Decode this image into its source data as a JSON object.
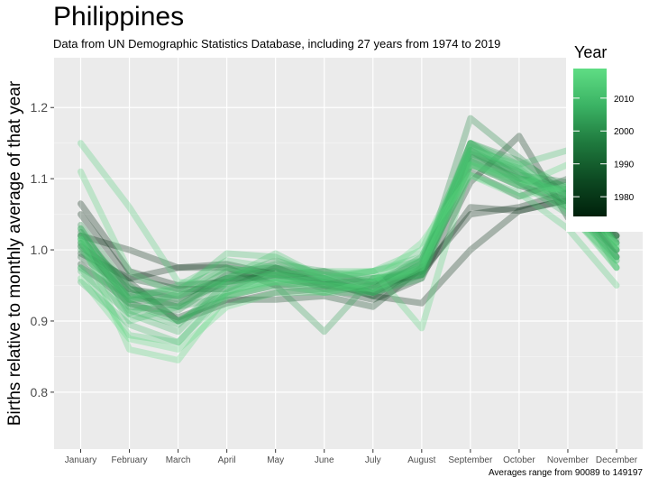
{
  "chart_data": {
    "type": "line",
    "title": "Philippines",
    "subtitle": "Data from UN Demographic Statistics Database, including 27 years from 1974 to 2019",
    "caption": "Averages range from 90089 to 149197",
    "ylabel": "Births relative to monthly average of that year",
    "xlabel": "",
    "categories": [
      "January",
      "February",
      "March",
      "April",
      "May",
      "June",
      "July",
      "August",
      "September",
      "October",
      "November",
      "December"
    ],
    "ylim": [
      0.72,
      1.27
    ],
    "yticks": [
      0.8,
      0.9,
      1.0,
      1.1,
      1.2
    ],
    "ytick_labels": [
      "0.8",
      "0.9",
      "1.0",
      "1.1",
      "1.2"
    ],
    "grid": true,
    "legend": {
      "title": "Year",
      "position": "right",
      "range": [
        1974,
        2019
      ],
      "ticks": [
        1980,
        1990,
        2000,
        2010
      ],
      "colors": [
        "#00200b",
        "#0d4a22",
        "#1f7a3e",
        "#3bb364",
        "#5fdd84"
      ]
    },
    "series": [
      {
        "year": 1975,
        "values": [
          1.065,
          0.97,
          0.95,
          0.955,
          0.975,
          0.96,
          0.94,
          0.97,
          1.05,
          1.06,
          1.08,
          1.04
        ]
      },
      {
        "year": 1976,
        "values": [
          1.05,
          0.96,
          0.975,
          0.98,
          0.965,
          0.97,
          0.95,
          0.965,
          1.06,
          1.055,
          1.07,
          1.03
        ]
      },
      {
        "year": 1978,
        "values": [
          1.02,
          1.0,
          0.975,
          0.975,
          0.95,
          0.955,
          0.935,
          0.925,
          1.0,
          1.055,
          1.07,
          1.02
        ]
      },
      {
        "year": 1980,
        "values": [
          1.005,
          0.955,
          0.9,
          0.925,
          0.94,
          0.945,
          0.93,
          0.96,
          1.095,
          1.16,
          1.045,
          1.02
        ]
      },
      {
        "year": 1983,
        "values": [
          0.98,
          0.925,
          0.905,
          0.93,
          0.93,
          0.935,
          0.92,
          0.975,
          1.12,
          1.09,
          1.07,
          1.03
        ]
      },
      {
        "year": 1986,
        "values": [
          0.995,
          0.96,
          0.945,
          0.945,
          0.975,
          0.95,
          0.94,
          0.975,
          1.11,
          1.075,
          1.1,
          0.99
        ]
      },
      {
        "year": 1990,
        "values": [
          0.99,
          0.945,
          0.935,
          0.96,
          0.96,
          0.95,
          0.945,
          0.98,
          1.13,
          1.1,
          1.085,
          1.01
        ]
      },
      {
        "year": 1993,
        "values": [
          1.01,
          0.93,
          0.925,
          0.955,
          0.965,
          0.96,
          0.935,
          0.975,
          1.14,
          1.095,
          1.06,
          1.0
        ]
      },
      {
        "year": 1996,
        "values": [
          1.025,
          0.94,
          0.92,
          0.965,
          0.97,
          0.945,
          0.95,
          0.985,
          1.14,
          1.105,
          1.095,
          1.02
        ]
      },
      {
        "year": 1999,
        "values": [
          1.035,
          0.945,
          0.93,
          0.97,
          0.975,
          0.955,
          0.955,
          0.97,
          1.185,
          1.13,
          1.075,
          1.0
        ]
      },
      {
        "year": 2001,
        "values": [
          1.02,
          0.92,
          0.915,
          0.96,
          0.985,
          0.965,
          0.955,
          0.975,
          1.15,
          1.125,
          1.085,
          1.015
        ]
      },
      {
        "year": 2003,
        "values": [
          1.0,
          0.935,
          0.945,
          0.975,
          0.965,
          0.955,
          0.94,
          0.965,
          1.135,
          1.11,
          1.065,
          0.99
        ]
      },
      {
        "year": 2004,
        "values": [
          0.975,
          0.935,
          0.92,
          0.935,
          0.95,
          0.885,
          0.96,
          0.965,
          1.15,
          1.1,
          1.09,
          0.975
        ]
      },
      {
        "year": 2005,
        "values": [
          1.015,
          0.95,
          0.9,
          0.935,
          0.95,
          0.94,
          0.95,
          0.99,
          1.125,
          1.1,
          1.08,
          1.01
        ]
      },
      {
        "year": 2006,
        "values": [
          1.03,
          0.93,
          0.935,
          0.96,
          0.98,
          0.97,
          0.96,
          0.97,
          1.15,
          1.11,
          1.07,
          1.0
        ]
      },
      {
        "year": 2007,
        "values": [
          1.01,
          0.915,
          0.895,
          0.955,
          0.965,
          0.955,
          0.94,
          0.96,
          1.135,
          1.115,
          1.06,
          0.99
        ]
      },
      {
        "year": 2008,
        "values": [
          0.97,
          0.91,
          0.885,
          0.955,
          0.96,
          0.95,
          0.96,
          0.965,
          1.12,
          1.095,
          1.05,
          0.985
        ]
      },
      {
        "year": 2009,
        "values": [
          1.03,
          0.925,
          0.9,
          0.94,
          0.97,
          0.96,
          0.945,
          0.98,
          1.145,
          1.115,
          1.075,
          1.01
        ]
      },
      {
        "year": 2010,
        "values": [
          0.955,
          0.895,
          0.87,
          0.94,
          0.96,
          0.95,
          0.955,
          0.985,
          1.125,
          1.09,
          1.085,
          0.99
        ]
      },
      {
        "year": 2011,
        "values": [
          1.02,
          0.91,
          0.94,
          0.995,
          0.99,
          0.96,
          0.97,
          0.985,
          1.15,
          1.12,
          1.14,
          1.03
        ]
      },
      {
        "year": 2012,
        "values": [
          1.005,
          0.9,
          0.92,
          0.96,
          0.995,
          0.96,
          0.96,
          0.975,
          1.13,
          1.1,
          1.08,
          1.0
        ]
      },
      {
        "year": 2013,
        "values": [
          1.015,
          0.93,
          0.95,
          0.985,
          0.975,
          0.965,
          0.97,
          0.99,
          1.14,
          1.11,
          1.06,
          0.975
        ]
      },
      {
        "year": 2014,
        "values": [
          0.975,
          0.88,
          0.87,
          0.945,
          0.955,
          0.94,
          0.94,
          0.98,
          1.105,
          1.08,
          1.03,
          0.95
        ]
      },
      {
        "year": 2015,
        "values": [
          1.15,
          1.06,
          0.955,
          0.95,
          0.955,
          0.96,
          0.97,
          1.0,
          1.14,
          1.12,
          1.07,
          0.985
        ]
      },
      {
        "year": 2016,
        "values": [
          1.11,
          0.97,
          0.935,
          0.975,
          0.965,
          0.97,
          0.97,
          0.89,
          1.12,
          1.1,
          1.055,
          0.975
        ]
      },
      {
        "year": 2017,
        "values": [
          1.015,
          0.86,
          0.845,
          0.935,
          0.955,
          0.95,
          0.945,
          0.975,
          1.12,
          1.09,
          1.12,
          1.005
        ]
      },
      {
        "year": 2018,
        "values": [
          0.96,
          0.875,
          0.86,
          0.92,
          0.94,
          0.94,
          0.955,
          1.01,
          1.105,
          1.075,
          1.09,
          1.005
        ]
      }
    ]
  }
}
